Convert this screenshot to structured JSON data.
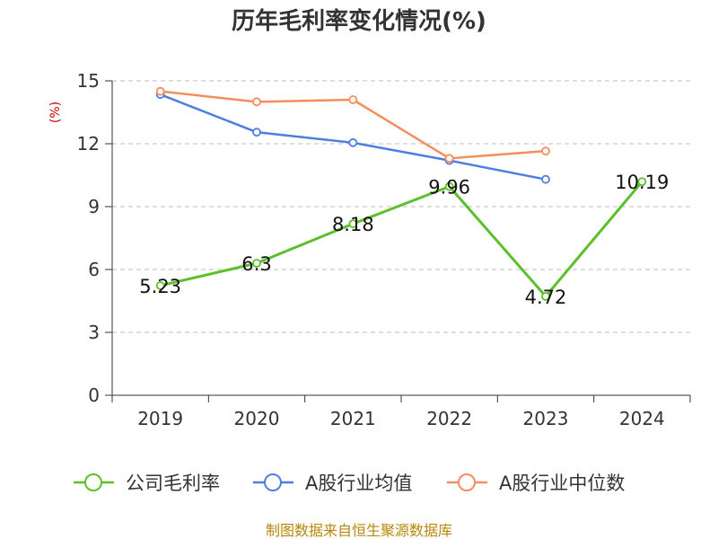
{
  "chart_data": {
    "type": "line",
    "title": "历年毛利率变化情况(%)",
    "ylabel": "(%)",
    "xlabel": "",
    "categories": [
      "2019",
      "2020",
      "2021",
      "2022",
      "2023",
      "2024"
    ],
    "ylim": [
      0,
      15
    ],
    "yticks": [
      0,
      3,
      6,
      9,
      12,
      15
    ],
    "grid": true,
    "legend_position": "bottom",
    "series": [
      {
        "name": "公司毛利率",
        "color": "#5cc02a",
        "values": [
          5.23,
          6.3,
          8.18,
          9.96,
          4.72,
          10.19
        ],
        "labels": [
          "5.23",
          "6.3",
          "8.18",
          "9.96",
          "4.72",
          "10.19"
        ]
      },
      {
        "name": "A股行业均值",
        "color": "#4e7fe0",
        "values": [
          14.35,
          12.55,
          12.05,
          11.2,
          10.3,
          null
        ]
      },
      {
        "name": "A股行业中位数",
        "color": "#f58d5c",
        "values": [
          14.5,
          14.0,
          14.1,
          11.3,
          11.65,
          null
        ]
      }
    ],
    "source": "制图数据来自恒生聚源数据库"
  }
}
